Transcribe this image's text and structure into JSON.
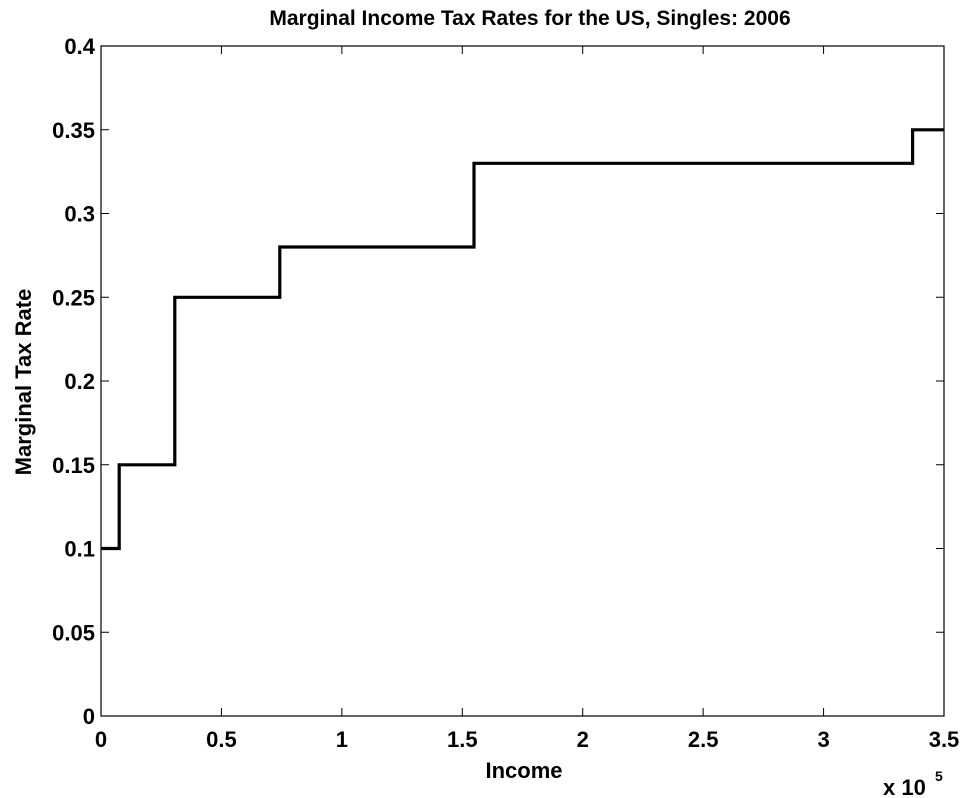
{
  "chart_data": {
    "type": "line",
    "title": "Marginal Income Tax Rates for the US, Singles: 2006",
    "xlabel": "Income",
    "ylabel": "Marginal Tax Rate",
    "x_multiplier_base": "x 10",
    "x_multiplier_exponent": "5",
    "xlim": [
      0,
      3.5
    ],
    "ylim": [
      0,
      0.4
    ],
    "x_ticks": [
      0,
      0.5,
      1,
      1.5,
      2,
      2.5,
      3,
      3.5
    ],
    "x_tick_labels": [
      "0",
      "0.5",
      "1",
      "1.5",
      "2",
      "2.5",
      "3",
      "3.5"
    ],
    "y_ticks": [
      0,
      0.05,
      0.1,
      0.15,
      0.2,
      0.25,
      0.3,
      0.35,
      0.4
    ],
    "y_tick_labels": [
      "0",
      "0.05",
      "0.1",
      "0.15",
      "0.2",
      "0.25",
      "0.3",
      "0.35",
      "0.4"
    ],
    "grid": false,
    "line_color": "#000000",
    "series": [
      {
        "x": [
          0,
          0.0755,
          0.0755,
          0.3065,
          0.3065,
          0.7425,
          0.7425,
          1.5485,
          1.5485,
          3.3695,
          3.3695,
          3.5
        ],
        "y": [
          0.1,
          0.1,
          0.15,
          0.15,
          0.25,
          0.25,
          0.28,
          0.28,
          0.33,
          0.33,
          0.35,
          0.35
        ]
      }
    ]
  }
}
